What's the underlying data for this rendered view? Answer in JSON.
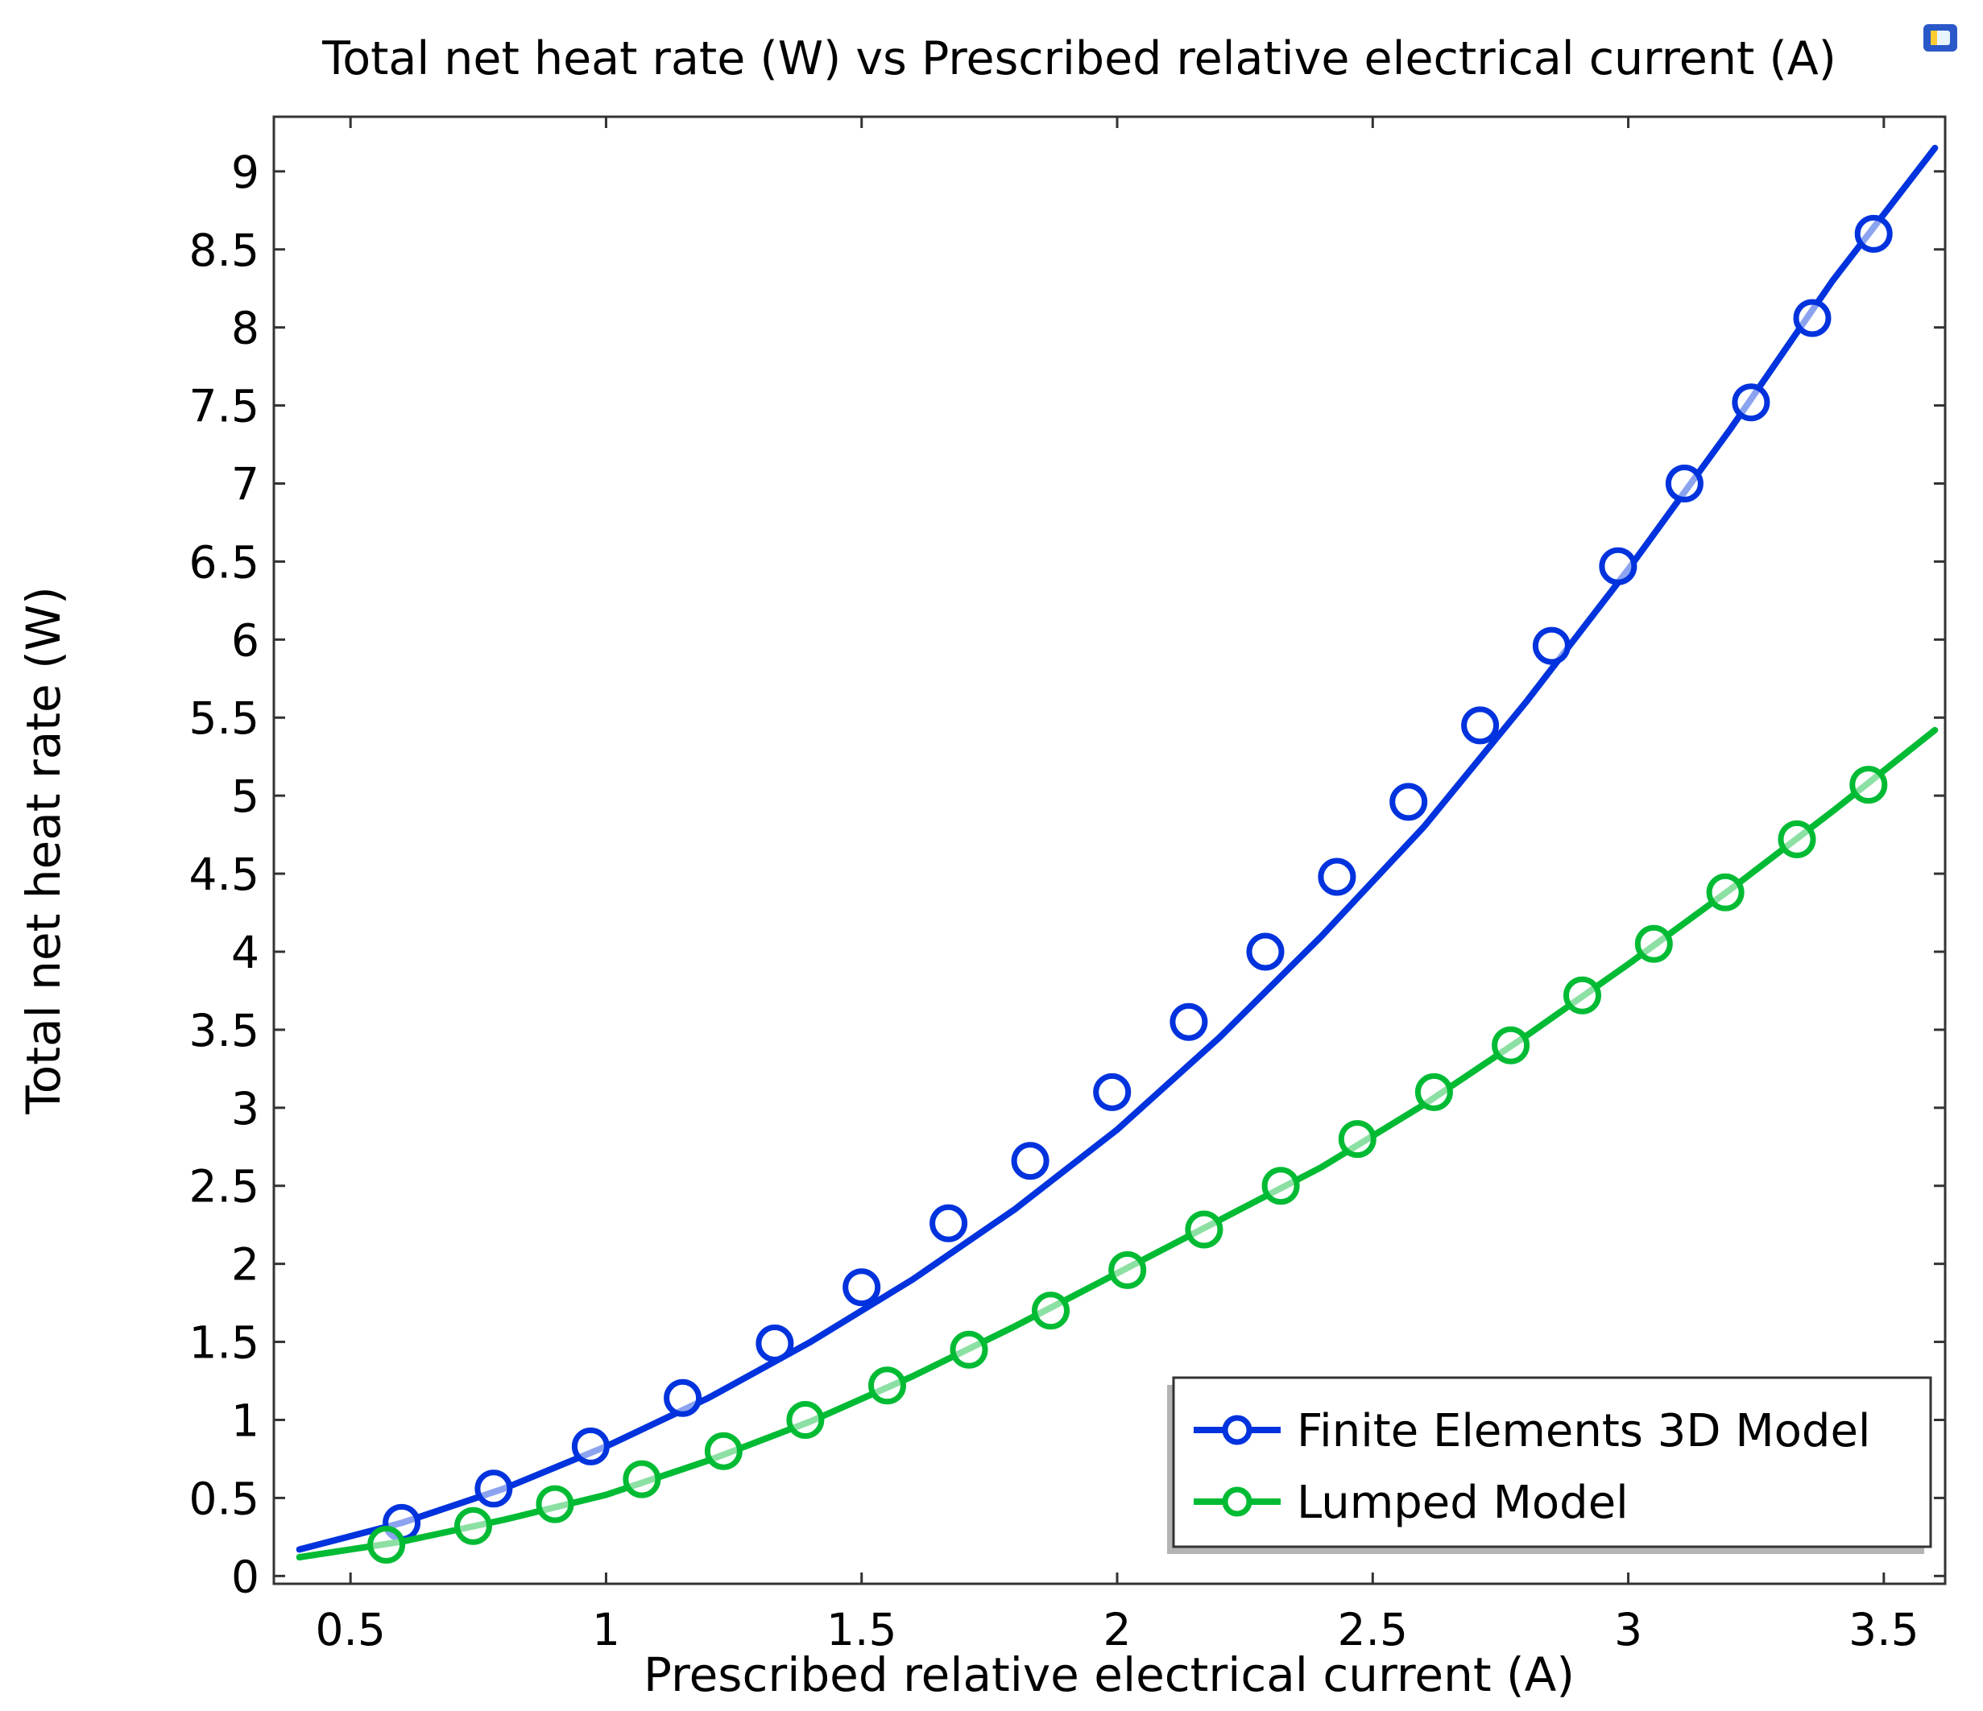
{
  "chart_data": {
    "type": "line",
    "title": "Total net heat rate (W) vs Prescribed relative electrical current (A)",
    "xlabel": "Prescribed relative electrical current (A)",
    "ylabel": "Total net heat rate (W)",
    "xlim": [
      0.35,
      3.62
    ],
    "ylim": [
      -0.05,
      9.35
    ],
    "x_ticks": [
      0.5,
      1,
      1.5,
      2,
      2.5,
      3,
      3.5
    ],
    "x_tick_labels": [
      "0.5",
      "1",
      "1.5",
      "2",
      "2.5",
      "3",
      "3.5"
    ],
    "y_ticks": [
      0,
      0.5,
      1,
      1.5,
      2,
      2.5,
      3,
      3.5,
      4,
      4.5,
      5,
      5.5,
      6,
      6.5,
      7,
      7.5,
      8,
      8.5,
      9
    ],
    "y_tick_labels": [
      "0",
      "0.5",
      "1",
      "1.5",
      "2",
      "2.5",
      "3",
      "3.5",
      "4",
      "4.5",
      "5",
      "5.5",
      "6",
      "6.5",
      "7",
      "7.5",
      "8",
      "8.5",
      "9"
    ],
    "grid": false,
    "legend_position": "bottom-right",
    "series": [
      {
        "name": "Finite Elements 3D Model",
        "color": "#0033dd",
        "marker": "circle-open",
        "line": [
          [
            0.4,
            0.17
          ],
          [
            0.6,
            0.34
          ],
          [
            0.8,
            0.56
          ],
          [
            1.0,
            0.83
          ],
          [
            1.2,
            1.14
          ],
          [
            1.4,
            1.5
          ],
          [
            1.6,
            1.9
          ],
          [
            1.8,
            2.35
          ],
          [
            2.0,
            2.86
          ],
          [
            2.2,
            3.45
          ],
          [
            2.4,
            4.1
          ],
          [
            2.6,
            4.8
          ],
          [
            2.8,
            5.6
          ],
          [
            3.0,
            6.45
          ],
          [
            3.2,
            7.35
          ],
          [
            3.4,
            8.3
          ],
          [
            3.6,
            9.15
          ]
        ],
        "markers": [
          [
            0.6,
            0.34
          ],
          [
            0.78,
            0.56
          ],
          [
            0.97,
            0.83
          ],
          [
            1.15,
            1.14
          ],
          [
            1.33,
            1.49
          ],
          [
            1.5,
            1.85
          ],
          [
            1.67,
            2.26
          ],
          [
            1.83,
            2.66
          ],
          [
            1.99,
            3.1
          ],
          [
            2.14,
            3.55
          ],
          [
            2.29,
            4.0
          ],
          [
            2.43,
            4.48
          ],
          [
            2.57,
            4.96
          ],
          [
            2.71,
            5.45
          ],
          [
            2.85,
            5.96
          ],
          [
            2.98,
            6.47
          ],
          [
            3.11,
            7.0
          ],
          [
            3.24,
            7.52
          ],
          [
            3.36,
            8.06
          ],
          [
            3.48,
            8.6
          ]
        ]
      },
      {
        "name": "Lumped Model",
        "color": "#00bb33",
        "marker": "circle-open",
        "line": [
          [
            0.4,
            0.12
          ],
          [
            0.6,
            0.22
          ],
          [
            0.8,
            0.36
          ],
          [
            1.0,
            0.52
          ],
          [
            1.2,
            0.74
          ],
          [
            1.4,
            0.99
          ],
          [
            1.6,
            1.28
          ],
          [
            1.8,
            1.6
          ],
          [
            2.0,
            1.94
          ],
          [
            2.2,
            2.28
          ],
          [
            2.4,
            2.62
          ],
          [
            2.6,
            3.02
          ],
          [
            2.8,
            3.46
          ],
          [
            3.0,
            3.92
          ],
          [
            3.2,
            4.4
          ],
          [
            3.4,
            4.9
          ],
          [
            3.6,
            5.42
          ]
        ],
        "markers": [
          [
            0.57,
            0.2
          ],
          [
            0.74,
            0.32
          ],
          [
            0.9,
            0.46
          ],
          [
            1.07,
            0.62
          ],
          [
            1.23,
            0.8
          ],
          [
            1.39,
            1.0
          ],
          [
            1.55,
            1.22
          ],
          [
            1.71,
            1.45
          ],
          [
            1.87,
            1.7
          ],
          [
            2.02,
            1.96
          ],
          [
            2.17,
            2.22
          ],
          [
            2.32,
            2.5
          ],
          [
            2.47,
            2.8
          ],
          [
            2.62,
            3.1
          ],
          [
            2.77,
            3.4
          ],
          [
            2.91,
            3.72
          ],
          [
            3.05,
            4.05
          ],
          [
            3.19,
            4.38
          ],
          [
            3.33,
            4.72
          ],
          [
            3.47,
            5.07
          ]
        ]
      }
    ]
  }
}
